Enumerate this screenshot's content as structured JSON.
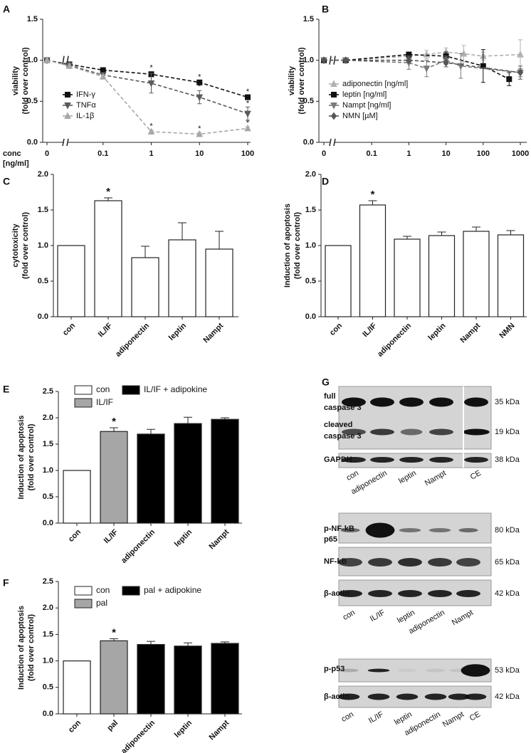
{
  "chart_data": [
    {
      "panel": "A",
      "type": "line",
      "ylabel": [
        "viability",
        "(fold over control)"
      ],
      "xlabel": [
        "conc",
        "[ng/ml]"
      ],
      "xscale": "log",
      "xlim": [
        0.01,
        100
      ],
      "xticks": [
        {
          "value": 0,
          "label": "0"
        },
        0.1,
        1,
        10,
        100
      ],
      "ylim": [
        0,
        1.5
      ],
      "yticks": [
        {
          "value": 0,
          "label": "0.0"
        },
        0.5,
        {
          "value": 1,
          "label": "1.0"
        },
        1.5
      ],
      "legend": "center left",
      "series": [
        {
          "name": "IFN-γ",
          "color": "#111111",
          "marker": "square",
          "linestyle": "dashed",
          "x": [
            0,
            0.02,
            0.1,
            1,
            10,
            100
          ],
          "values": [
            1.0,
            0.95,
            0.88,
            0.83,
            0.73,
            0.55
          ],
          "errors": [
            0,
            0,
            0.02,
            0.03,
            0.02,
            0.02
          ],
          "significance": [
            null,
            null,
            null,
            "*",
            "*",
            "*"
          ]
        },
        {
          "name": "TNFα",
          "color": "#5a5a5a",
          "marker": "triangle-down",
          "linestyle": "dashed",
          "x": [
            0,
            0.02,
            0.1,
            1,
            10,
            100
          ],
          "values": [
            1.0,
            0.94,
            0.82,
            0.72,
            0.55,
            0.35
          ],
          "errors": [
            0,
            0,
            0.03,
            0.12,
            0.08,
            0.08
          ],
          "significance": [
            null,
            null,
            null,
            null,
            "*",
            "*"
          ]
        },
        {
          "name": "IL-1β",
          "color": "#a8a8a8",
          "marker": "triangle-up",
          "linestyle": "dashed",
          "x": [
            0,
            0.02,
            0.1,
            1,
            10,
            100
          ],
          "values": [
            1.0,
            0.93,
            0.8,
            0.13,
            0.1,
            0.17
          ],
          "errors": [
            0,
            0,
            0.02,
            0.02,
            0.02,
            0.02
          ],
          "significance": [
            null,
            null,
            null,
            "*",
            "*",
            "*"
          ]
        }
      ]
    },
    {
      "panel": "B",
      "type": "line",
      "ylabel": [
        "viability",
        "(fold over control)"
      ],
      "xscale": "log",
      "xlim": [
        0.01,
        1000
      ],
      "xticks": [
        {
          "value": 0,
          "label": "0"
        },
        0.1,
        1,
        10,
        100,
        1000
      ],
      "ylim": [
        0,
        1.5
      ],
      "yticks": [
        {
          "value": 0,
          "label": "0.0"
        },
        0.5,
        {
          "value": 1,
          "label": "1.0"
        },
        1.5
      ],
      "legend": "center left",
      "series": [
        {
          "name": "adiponectin [ng/ml]",
          "color": "#b0b0b0",
          "marker": "triangle-up",
          "linestyle": "dashed",
          "x": [
            0,
            0.02,
            1,
            3,
            10,
            30,
            100,
            1000
          ],
          "values": [
            1.0,
            1.0,
            1.05,
            1.07,
            1.1,
            1.08,
            1.05,
            1.07
          ],
          "errors": [
            0,
            0,
            0.05,
            0.05,
            0.05,
            0.1,
            0.05,
            0.18
          ]
        },
        {
          "name": "leptin [ng/ml]",
          "color": "#111111",
          "marker": "square",
          "linestyle": "dashed",
          "x": [
            0,
            0.02,
            1,
            10,
            100,
            500
          ],
          "values": [
            1.0,
            1.0,
            1.07,
            1.05,
            0.93,
            0.77
          ],
          "errors": [
            0,
            0,
            0.03,
            0.05,
            0.2,
            0.08
          ]
        },
        {
          "name": "Nampt [ng/ml]",
          "color": "#7a7a7a",
          "marker": "triangle-down",
          "linestyle": "dashed",
          "x": [
            0,
            0.02,
            1,
            3,
            10,
            25,
            1000
          ],
          "values": [
            1.0,
            1.0,
            0.97,
            0.9,
            1.0,
            0.93,
            0.85
          ],
          "errors": [
            0,
            0,
            0.08,
            0.1,
            0.05,
            0.15,
            0.05
          ]
        },
        {
          "name": "NMN [µM]",
          "color": "#555555",
          "marker": "diamond",
          "linestyle": "dashed",
          "x": [
            0,
            0.02,
            1,
            10,
            1000
          ],
          "values": [
            1.0,
            1.0,
            1.0,
            0.97,
            0.85
          ],
          "errors": [
            0,
            0,
            0.03,
            0.05,
            0.08
          ]
        }
      ]
    },
    {
      "panel": "C",
      "type": "bar",
      "ylabel": [
        "cytotoxicity",
        "(fold over control)"
      ],
      "categories": [
        "con",
        "IL/IF",
        "adiponectin",
        "leptin",
        "Nampt"
      ],
      "values": [
        1.0,
        1.63,
        0.83,
        1.08,
        0.95
      ],
      "errors": [
        0,
        0.04,
        0.16,
        0.24,
        0.25
      ],
      "significance": [
        null,
        "*",
        null,
        null,
        null
      ],
      "color": "#ffffff",
      "ylim": [
        0,
        2
      ],
      "yticks": [
        {
          "value": 0,
          "label": "0.0"
        },
        0.5,
        {
          "value": 1,
          "label": "1.0"
        },
        1.5,
        {
          "value": 2,
          "label": "2.0"
        }
      ]
    },
    {
      "panel": "D",
      "type": "bar",
      "ylabel": [
        "Induction of apoptosis",
        "(fold over control)"
      ],
      "categories": [
        "con",
        "IL/IF",
        "adiponectin",
        "leptin",
        "Nampt",
        "NMN"
      ],
      "values": [
        1.0,
        1.57,
        1.09,
        1.14,
        1.2,
        1.15
      ],
      "errors": [
        0,
        0.06,
        0.04,
        0.05,
        0.06,
        0.06
      ],
      "significance": [
        null,
        "*",
        null,
        null,
        null,
        null
      ],
      "color": "#ffffff",
      "ylim": [
        0,
        2
      ],
      "yticks": [
        {
          "value": 0,
          "label": "0.0"
        },
        0.5,
        {
          "value": 1,
          "label": "1.0"
        },
        1.5,
        {
          "value": 2,
          "label": "2.0"
        }
      ]
    },
    {
      "panel": "E",
      "type": "bar",
      "ylabel": [
        "Induction of apoptosis",
        "(fold over control)"
      ],
      "categories": [
        "con",
        "IL/IF",
        "adiponectin",
        "leptin",
        "Nampt"
      ],
      "values": [
        1.0,
        1.74,
        1.69,
        1.89,
        1.97
      ],
      "errors": [
        0,
        0.07,
        0.09,
        0.12,
        0.03
      ],
      "significance": [
        null,
        "*",
        null,
        null,
        null
      ],
      "colors": [
        "#ffffff",
        "#a6a6a6",
        "#000000",
        "#000000",
        "#000000"
      ],
      "legend_items": [
        {
          "name": "con",
          "color": "#ffffff"
        },
        {
          "name": "IL/IF",
          "color": "#a6a6a6"
        },
        {
          "name": "IL/IF + adipokine",
          "color": "#000000"
        }
      ],
      "ylim": [
        0,
        2.5
      ],
      "yticks": [
        {
          "value": 0,
          "label": "0.0"
        },
        0.5,
        {
          "value": 1,
          "label": "1.0"
        },
        1.5,
        {
          "value": 2,
          "label": "2.0"
        },
        2.5
      ]
    },
    {
      "panel": "F",
      "type": "bar",
      "ylabel": [
        "Induction of apoptosis",
        "(fold over control)"
      ],
      "categories": [
        "con",
        "pal",
        "adiponectin",
        "leptin",
        "Nampt"
      ],
      "values": [
        1.0,
        1.38,
        1.31,
        1.28,
        1.33
      ],
      "errors": [
        0,
        0.04,
        0.06,
        0.06,
        0.03
      ],
      "significance": [
        null,
        "*",
        null,
        null,
        null
      ],
      "colors": [
        "#ffffff",
        "#a6a6a6",
        "#000000",
        "#000000",
        "#000000"
      ],
      "legend_items": [
        {
          "name": "con",
          "color": "#ffffff"
        },
        {
          "name": "pal",
          "color": "#a6a6a6"
        },
        {
          "name": "pal + adipokine",
          "color": "#000000"
        }
      ],
      "ylim": [
        0,
        2.5
      ],
      "yticks": [
        {
          "value": 0,
          "label": "0.0"
        },
        0.5,
        {
          "value": 1,
          "label": "1.0"
        },
        1.5,
        {
          "value": 2,
          "label": "2.0"
        },
        2.5
      ]
    }
  ],
  "blots": {
    "panel": "G",
    "groups": [
      {
        "lanes": [
          "con",
          "adiponectin",
          "leptin",
          "Nampt",
          "CE"
        ],
        "rows": [
          {
            "label": [
              "full",
              "caspase 3"
            ],
            "kda": "35 kDa"
          },
          {
            "label": [
              "cleaved",
              "caspase 3"
            ],
            "kda": "19 kDa"
          },
          {
            "label": [
              "GAPDH"
            ],
            "kda": "38 kDa"
          }
        ]
      },
      {
        "lanes": [
          "con",
          "IL/IF",
          "leptin",
          "adiponectin",
          "Nampt"
        ],
        "rows": [
          {
            "label": [
              "p-NF-kB",
              "p65"
            ],
            "kda": "80 kDa"
          },
          {
            "label": [
              "NF-kB"
            ],
            "kda": "65 kDa"
          },
          {
            "label": [
              "β-actin"
            ],
            "kda": "42 kDa"
          }
        ]
      },
      {
        "lanes": [
          "con",
          "IL/IF",
          "leptin",
          "adiponectin",
          "Nampt",
          "CE"
        ],
        "rows": [
          {
            "label": [
              "p-p53"
            ],
            "kda": "53 kDa"
          },
          {
            "label": [
              "β-actin"
            ],
            "kda": "42 kDa"
          }
        ]
      }
    ]
  }
}
